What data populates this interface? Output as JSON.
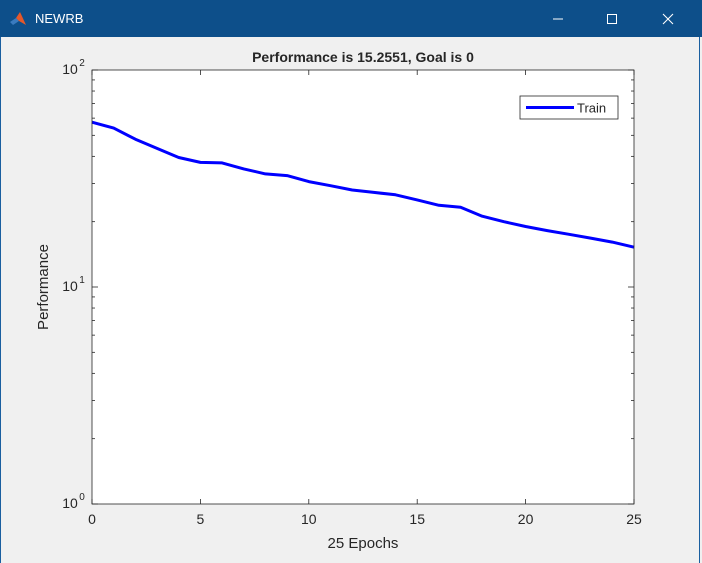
{
  "window": {
    "title": "NEWRB",
    "icon": "matlab-logo-icon",
    "buttons": [
      "minimize-icon",
      "maximize-icon",
      "close-icon"
    ]
  },
  "colors": {
    "titlebar": "#0d4f8a",
    "series": "#0000ff",
    "background": "#f0f0f0",
    "axes": "#262626"
  },
  "chart_data": {
    "type": "line",
    "title": "Performance is 15.2551, Goal is 0",
    "xlabel": "25 Epochs",
    "ylabel": "Performance",
    "xlim": [
      0,
      25
    ],
    "ylim": [
      1,
      100
    ],
    "yscale": "log",
    "xticks": [
      "0",
      "5",
      "10",
      "15",
      "20",
      "25"
    ],
    "xtick_values": [
      0,
      5,
      10,
      15,
      20,
      25
    ],
    "yticks": [
      {
        "value": 1,
        "base": "10",
        "exp": "0"
      },
      {
        "value": 10,
        "base": "10",
        "exp": "1"
      },
      {
        "value": 100,
        "base": "10",
        "exp": "2"
      }
    ],
    "grid": false,
    "legend_position": "top-right",
    "series": [
      {
        "name": "Train",
        "x": [
          0,
          1,
          2,
          3,
          4,
          5,
          6,
          7,
          8,
          9,
          10,
          11,
          12,
          13,
          14,
          15,
          16,
          17,
          18,
          19,
          20,
          21,
          22,
          23,
          24,
          25
        ],
        "y": [
          57.5,
          54,
          48,
          43.5,
          39.5,
          37.5,
          37.3,
          35,
          33.2,
          32.6,
          30.6,
          29.3,
          28,
          27.3,
          26.6,
          25.2,
          23.8,
          23.3,
          21.2,
          20,
          19,
          18.2,
          17.5,
          16.8,
          16.1,
          15.2551
        ]
      }
    ]
  }
}
